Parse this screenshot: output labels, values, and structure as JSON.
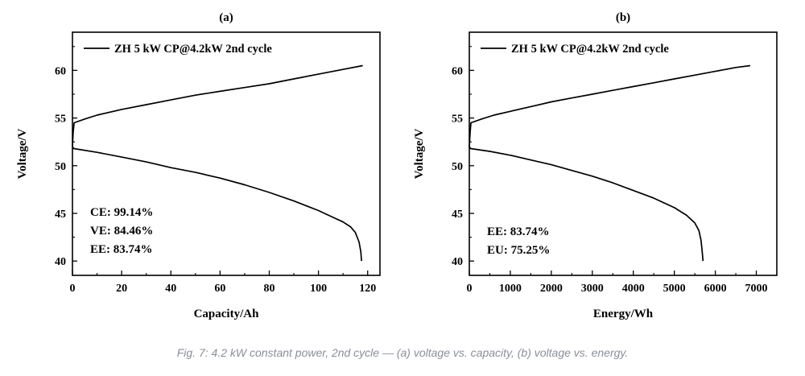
{
  "caption": "Fig. 7: 4.2 kW constant power, 2nd cycle — (a) voltage vs. capacity, (b) voltage vs. energy.",
  "chart_data": [
    {
      "id": "a",
      "type": "line",
      "title": "(a)",
      "xlabel": "Capacity/Ah",
      "ylabel": "Voltage/V",
      "xlim": [
        0,
        125
      ],
      "ylim": [
        38.5,
        64
      ],
      "xticks": [
        0,
        20,
        40,
        60,
        80,
        100,
        120
      ],
      "yticks": [
        40,
        45,
        50,
        55,
        60
      ],
      "legend": "top-left",
      "grid": false,
      "annotations": [
        "CE: 99.14%",
        "VE: 84.46%",
        "EE: 83.74%"
      ],
      "series": [
        {
          "name": "ZH 5 kW CP@4.2kW 2nd cycle",
          "color": "#000000",
          "charge": [
            [
              0,
              52.0
            ],
            [
              0.3,
              53.5
            ],
            [
              0.7,
              54.5
            ],
            [
              5,
              54.9
            ],
            [
              10,
              55.3
            ],
            [
              20,
              55.9
            ],
            [
              30,
              56.4
            ],
            [
              40,
              56.9
            ],
            [
              50,
              57.4
            ],
            [
              60,
              57.8
            ],
            [
              70,
              58.2
            ],
            [
              80,
              58.6
            ],
            [
              90,
              59.1
            ],
            [
              100,
              59.6
            ],
            [
              110,
              60.1
            ],
            [
              118,
              60.5
            ]
          ],
          "discharge": [
            [
              0,
              52.0
            ],
            [
              0.5,
              51.8
            ],
            [
              10,
              51.4
            ],
            [
              20,
              50.9
            ],
            [
              30,
              50.4
            ],
            [
              40,
              49.8
            ],
            [
              50,
              49.3
            ],
            [
              60,
              48.7
            ],
            [
              70,
              48.0
            ],
            [
              80,
              47.2
            ],
            [
              90,
              46.3
            ],
            [
              100,
              45.3
            ],
            [
              105,
              44.7
            ],
            [
              110,
              44.1
            ],
            [
              113,
              43.6
            ],
            [
              115,
              43.0
            ],
            [
              116.5,
              42.0
            ],
            [
              117.2,
              41.0
            ],
            [
              117.5,
              40.0
            ]
          ]
        }
      ]
    },
    {
      "id": "b",
      "type": "line",
      "title": "(b)",
      "xlabel": "Energy/Wh",
      "ylabel": "Voltage/V",
      "xlim": [
        0,
        7500
      ],
      "ylim": [
        38.5,
        64
      ],
      "xticks": [
        0,
        1000,
        2000,
        3000,
        4000,
        5000,
        6000,
        7000
      ],
      "yticks": [
        40,
        45,
        50,
        55,
        60
      ],
      "legend": "top-left",
      "grid": false,
      "annotations": [
        "EE: 83.74%",
        "EU: 75.25%"
      ],
      "series": [
        {
          "name": "ZH 5 kW CP@4.2kW 2nd cycle",
          "color": "#000000",
          "charge": [
            [
              0,
              52.0
            ],
            [
              20,
              53.5
            ],
            [
              40,
              54.5
            ],
            [
              300,
              54.9
            ],
            [
              600,
              55.3
            ],
            [
              1000,
              55.7
            ],
            [
              1500,
              56.2
            ],
            [
              2000,
              56.7
            ],
            [
              2500,
              57.1
            ],
            [
              3000,
              57.5
            ],
            [
              3500,
              57.9
            ],
            [
              4000,
              58.3
            ],
            [
              4500,
              58.7
            ],
            [
              5000,
              59.1
            ],
            [
              5500,
              59.5
            ],
            [
              6000,
              59.9
            ],
            [
              6500,
              60.3
            ],
            [
              6850,
              60.5
            ]
          ],
          "discharge": [
            [
              0,
              52.0
            ],
            [
              30,
              51.8
            ],
            [
              500,
              51.5
            ],
            [
              1000,
              51.1
            ],
            [
              1500,
              50.6
            ],
            [
              2000,
              50.1
            ],
            [
              2500,
              49.5
            ],
            [
              3000,
              48.9
            ],
            [
              3500,
              48.2
            ],
            [
              4000,
              47.4
            ],
            [
              4500,
              46.6
            ],
            [
              5000,
              45.6
            ],
            [
              5300,
              44.8
            ],
            [
              5500,
              44.0
            ],
            [
              5600,
              43.2
            ],
            [
              5650,
              42.2
            ],
            [
              5680,
              41.0
            ],
            [
              5700,
              40.0
            ]
          ]
        }
      ]
    }
  ]
}
